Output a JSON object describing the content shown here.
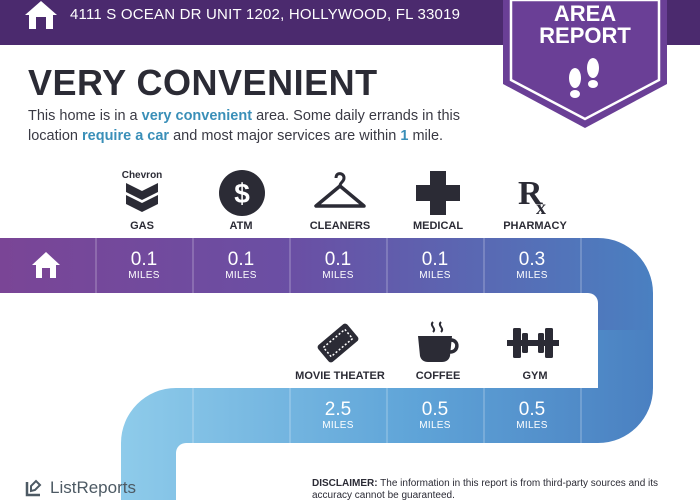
{
  "header": {
    "address": "4111 S OCEAN DR UNIT 1202, HOLLYWOOD, FL 33019"
  },
  "badge": {
    "line1": "AREA",
    "line2": "REPORT"
  },
  "title": "VERY CONVENIENT",
  "description": {
    "p1": "This home is in a ",
    "h1": "very convenient",
    "p2": " area. Some daily errands in this location ",
    "h2": "require a car",
    "p3": " and most major services are within ",
    "h3": "1",
    "p4": " mile."
  },
  "services_row1": [
    {
      "name": "GAS",
      "icon": "chevron-gas-icon",
      "icon_text": "Chevron",
      "distance": "0.1",
      "unit": "MILES"
    },
    {
      "name": "ATM",
      "icon": "dollar-icon",
      "distance": "0.1",
      "unit": "MILES"
    },
    {
      "name": "CLEANERS",
      "icon": "hanger-icon",
      "distance": "0.1",
      "unit": "MILES"
    },
    {
      "name": "MEDICAL",
      "icon": "medical-cross-icon",
      "distance": "0.1",
      "unit": "MILES"
    },
    {
      "name": "PHARMACY",
      "icon": "rx-icon",
      "distance": "0.3",
      "unit": "MILES"
    }
  ],
  "services_row2": [
    {
      "name": "MOVIE THEATER",
      "icon": "ticket-icon",
      "distance": "2.5",
      "unit": "MILES"
    },
    {
      "name": "COFFEE",
      "icon": "coffee-cup-icon",
      "distance": "0.5",
      "unit": "MILES"
    },
    {
      "name": "GYM",
      "icon": "dumbbell-icon",
      "distance": "0.5",
      "unit": "MILES"
    }
  ],
  "footer": {
    "logo": "ListReports",
    "disclaimer_label": "DISCLAIMER:",
    "disclaimer_text": " The information in this report is from third-party sources and its accuracy cannot be guaranteed."
  },
  "colors": {
    "header": "#4b2a6e",
    "badge": "#6a3f96",
    "road_purple": "#7a4596",
    "road_blue": "#4a80c1",
    "road_light": "#84c6ea",
    "highlight": "#3a8fb8"
  }
}
